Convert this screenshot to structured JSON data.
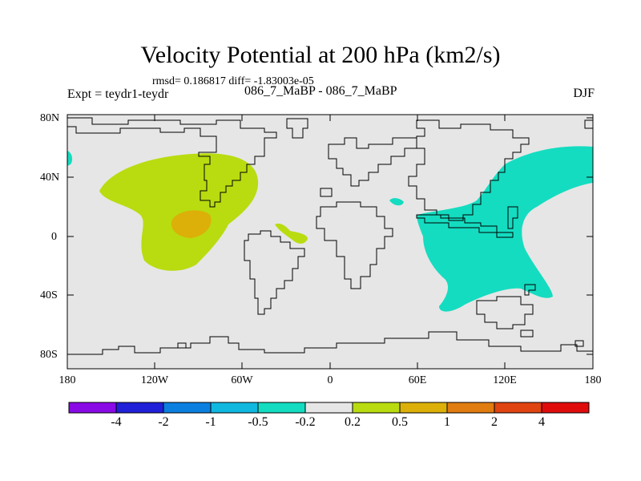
{
  "title": "Velocity Potential at 200 hPa (km2/s)",
  "stats": "rmsd= 0.186817 diff= -1.83003e-05",
  "expt": "Expt = teydr1-teydr",
  "cases": "086_7_MaBP - 086_7_MaBP",
  "season": "DJF",
  "y_ticks": [
    "80N",
    "40N",
    "0",
    "40S",
    "80S"
  ],
  "x_ticks": [
    "180",
    "120W",
    "60W",
    "0",
    "60E",
    "120E",
    "180"
  ],
  "colorbar": {
    "labels": [
      "-4",
      "-2",
      "-1",
      "-0.5",
      "-0.2",
      "0.2",
      "0.5",
      "1",
      "2",
      "4"
    ],
    "colors": [
      "#8a0ae6",
      "#2020d8",
      "#0a7fe0",
      "#10b8e0",
      "#14dcc0",
      "#e6e6e6",
      "#b8dc10",
      "#dcb008",
      "#e07c10",
      "#e04410",
      "#e00c0c"
    ]
  },
  "shading": {
    "background": "#e6e6e6",
    "positive_low": "#b8dc10",
    "positive_mid": "#dcb008",
    "negative_low": "#14dcc0"
  }
}
